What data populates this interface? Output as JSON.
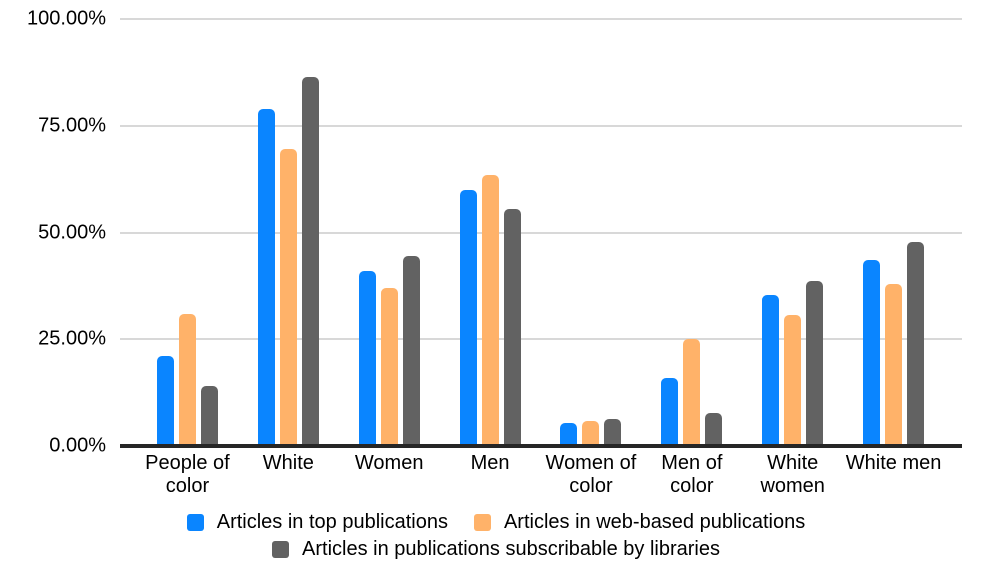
{
  "chart_data": {
    "type": "bar",
    "categories": [
      "People of color",
      "White",
      "Women",
      "Men",
      "Women of color",
      "Men of color",
      "White women",
      "White men"
    ],
    "series": [
      {
        "name": "Articles in top publications",
        "color": "#0a85ff",
        "values": [
          21.0,
          79.0,
          41.0,
          60.0,
          5.5,
          16.0,
          35.3,
          43.5
        ]
      },
      {
        "name": "Articles in web-based publications",
        "color": "#ffb269",
        "values": [
          30.8,
          69.5,
          37.0,
          63.5,
          5.8,
          25.0,
          30.6,
          38.0
        ]
      },
      {
        "name": "Articles in publications subscribable by libraries",
        "color": "#626262",
        "values": [
          14.0,
          86.5,
          44.5,
          55.5,
          6.3,
          7.8,
          38.6,
          47.7
        ]
      }
    ],
    "y_ticks": [
      {
        "value": 0,
        "label": "0.00%"
      },
      {
        "value": 25,
        "label": "25.00%"
      },
      {
        "value": 50,
        "label": "50.00%"
      },
      {
        "value": 75,
        "label": "75.00%"
      },
      {
        "value": 100,
        "label": "100.00%"
      }
    ],
    "ylim": [
      0,
      100
    ],
    "grid": true,
    "legend_position": "bottom"
  },
  "colors": {
    "background": "#ffffff",
    "gridline": "#d8d8d8",
    "axis_line": "#262626",
    "label_text": "#000000"
  }
}
